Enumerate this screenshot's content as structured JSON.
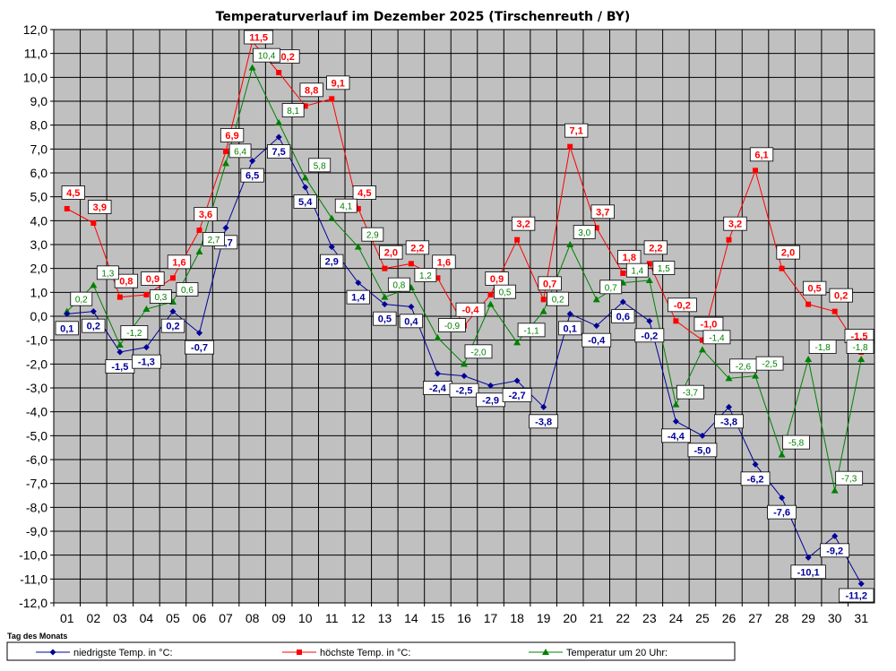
{
  "chart_data": {
    "type": "line",
    "title": "Temperaturverlauf im Dezember 2025 (Tirschenreuth / BY)",
    "xlabel": "Tag des Monats",
    "ylabel": "",
    "x": [
      "01",
      "02",
      "03",
      "04",
      "05",
      "06",
      "07",
      "08",
      "09",
      "10",
      "11",
      "12",
      "13",
      "14",
      "15",
      "16",
      "17",
      "18",
      "19",
      "20",
      "21",
      "22",
      "23",
      "24",
      "25",
      "26",
      "27",
      "28",
      "29",
      "30",
      "31"
    ],
    "ylim": [
      -12,
      12
    ],
    "yticks": [
      "12,0",
      "11,0",
      "10,0",
      "9,0",
      "8,0",
      "7,0",
      "6,0",
      "5,0",
      "4,0",
      "3,0",
      "2,0",
      "1,0",
      "0,0",
      "-1,0",
      "-2,0",
      "-3,0",
      "-4,0",
      "-5,0",
      "-6,0",
      "-7,0",
      "-8,0",
      "-9,0",
      "-10,0",
      "-11,0",
      "-12,0"
    ],
    "grid": true,
    "legend_position": "bottom",
    "series": [
      {
        "name": "niedrigste Temp. in °C:",
        "color": "#000099",
        "marker": "diamond",
        "values": [
          0.1,
          0.2,
          -1.5,
          -1.3,
          0.2,
          -0.7,
          3.7,
          6.5,
          7.5,
          5.4,
          2.9,
          1.4,
          0.5,
          0.4,
          -2.4,
          -2.5,
          -2.9,
          -2.7,
          -3.8,
          0.1,
          -0.4,
          0.6,
          -0.2,
          -4.4,
          -5.0,
          -3.8,
          -6.2,
          -7.6,
          -10.1,
          -9.2,
          -11.2
        ],
        "labels": [
          "0,1",
          "0,2",
          "-1,5",
          "-1,3",
          "0,2",
          "-0,7",
          "3,7",
          "6,5",
          "7,5",
          "5,4",
          "2,9",
          "1,4",
          "0,5",
          "0,4",
          "-2,4",
          "-2,5",
          "-2,9",
          "-2,7",
          "-3,8",
          "0,1",
          "-0,4",
          "0,6",
          "-0,2",
          "-4,4",
          "-5,0",
          "-3,8",
          "-6,2",
          "-7,6",
          "-10,1",
          "-9,2",
          "-11,2"
        ]
      },
      {
        "name": "höchste Temp. in °C:",
        "color": "#ff0000",
        "marker": "square",
        "values": [
          4.5,
          3.9,
          0.8,
          0.9,
          1.6,
          3.6,
          6.9,
          11.5,
          10.2,
          8.8,
          9.1,
          4.5,
          2.0,
          2.2,
          1.6,
          -0.4,
          0.9,
          3.2,
          0.7,
          7.1,
          3.7,
          1.8,
          2.2,
          -0.2,
          -1.0,
          3.2,
          6.1,
          2.0,
          0.5,
          0.2,
          -1.5
        ],
        "labels": [
          "4,5",
          "3,9",
          "0,8",
          "0,9",
          "1,6",
          "3,6",
          "6,9",
          "11,5",
          "10,2",
          "8,8",
          "9,1",
          "4,5",
          "2,0",
          "2,2",
          "1,6",
          "-0,4",
          "0,9",
          "3,2",
          "0,7",
          "7,1",
          "3,7",
          "1,8",
          "2,2",
          "-0,2",
          "-1,0",
          "3,2",
          "6,1",
          "2,0",
          "0,5",
          "0,2",
          "-1,5"
        ]
      },
      {
        "name": "Temperatur um 20 Uhr:",
        "color": "#008000",
        "marker": "triangle",
        "values": [
          0.2,
          1.3,
          -1.2,
          0.3,
          0.6,
          2.7,
          6.4,
          10.4,
          8.1,
          5.8,
          4.1,
          2.9,
          0.8,
          1.2,
          -0.9,
          -2.0,
          0.5,
          -1.1,
          0.2,
          3.0,
          0.7,
          1.4,
          1.5,
          -3.7,
          -1.4,
          -2.6,
          -2.5,
          -5.8,
          -1.8,
          -7.3,
          -1.8
        ],
        "labels": [
          "0,2",
          "1,3",
          "-1,2",
          "0,3",
          "0,6",
          "2,7",
          "6,4",
          "10,4",
          "8,1",
          "5,8",
          "4,1",
          "2,9",
          "0,8",
          "1,2",
          "-0,9",
          "-2,0",
          "0,5",
          "-1,1",
          "0,2",
          "3,0",
          "0,7",
          "1,4",
          "1,5",
          "-3,7",
          "-1,4",
          "-2,6",
          "-2,5",
          "-5,8",
          "-1,8",
          "-7,3",
          "-1,8"
        ]
      }
    ]
  }
}
